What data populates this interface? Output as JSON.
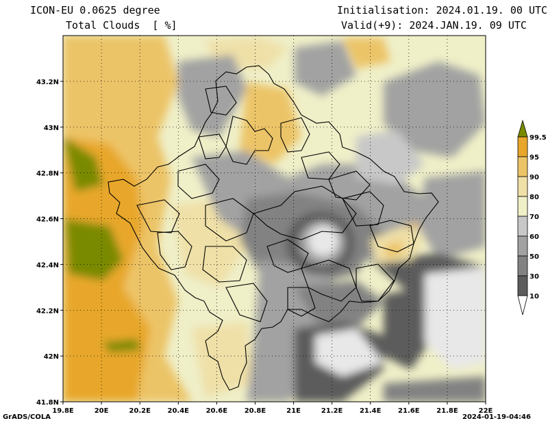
{
  "header": {
    "model": "ICON-EU 0.0625 degree",
    "variable": "Total Clouds  [ %]",
    "init": "Initialisation: 2024.01.19. 00 UTC",
    "valid": "Valid(+9): 2024.JAN.19. 09 UTC"
  },
  "axes": {
    "lon_labels": [
      "19.8E",
      "20E",
      "20.2E",
      "20.4E",
      "20.6E",
      "20.8E",
      "21E",
      "21.2E",
      "21.4E",
      "21.6E",
      "21.8E",
      "22E"
    ],
    "lat_labels": [
      "43.2N",
      "43N",
      "42.8N",
      "42.6N",
      "42.4N",
      "42.2N",
      "42N",
      "41.8N"
    ],
    "lon_range": [
      19.8,
      22.0
    ],
    "lat_range": [
      41.8,
      43.4
    ]
  },
  "legend": {
    "labels": [
      "99.5",
      "95",
      "90",
      "80",
      "70",
      "60",
      "50",
      "30",
      "10"
    ],
    "colors": [
      "#7a8a00",
      "#e8a72a",
      "#ecc468",
      "#efe0a8",
      "#efefc8",
      "#c8c8c8",
      "#a2a2a2",
      "#828282",
      "#5c5c5c",
      "#ffffff"
    ]
  },
  "footer": {
    "left": "GrADS/COLA",
    "right": "2024-01-19-04:46"
  },
  "colors": {
    "frame": "#000000",
    "grid": "#000000"
  }
}
